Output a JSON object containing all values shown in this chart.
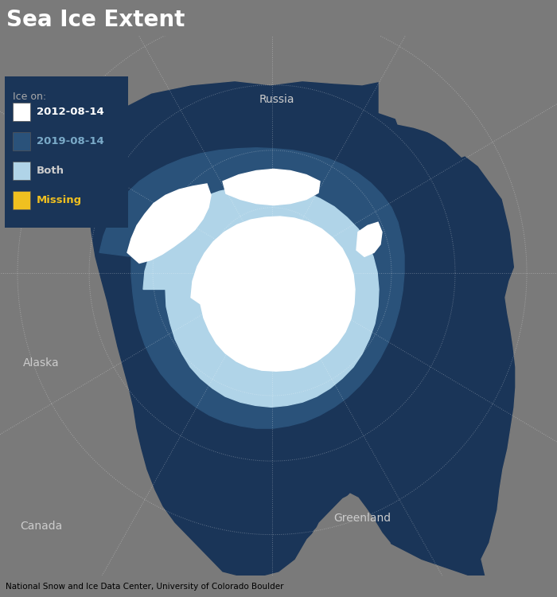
{
  "title": "Sea Ice Extent",
  "title_bg": "#5a5a5a",
  "title_color": "#ffffff",
  "title_fontsize": 20,
  "map_bg": "#7a7a7a",
  "ocean_color": "#1a3558",
  "land_color": "#7a7a7a",
  "ice_2012_color": "#ffffff",
  "ice_2019_color": "#2a527a",
  "ice_both_color": "#b0d4e8",
  "ice_missing_color": "#f0c020",
  "legend_bg": "#1a3558",
  "legend_label_2012": "#ffffff",
  "legend_label_2019": "#7aaac8",
  "legend_label_both": "#cccccc",
  "legend_label_missing": "#f0c020",
  "legend_label_title": "#aaaaaa",
  "legend_ice_2012_label": "2012-08-14",
  "legend_ice_2019_label": "2019-08-14",
  "legend_both_label": "Both",
  "legend_missing_label": "Missing",
  "legend_title": "Ice on:",
  "footer_text": "National Snow and Ice Data Center, University of Colorado Boulder",
  "footer_bg": "#d0d0d0",
  "footer_color": "#000000",
  "label_russia": "Russia",
  "label_alaska": "Alaska",
  "label_greenland": "Greenland",
  "label_canada": "Canada",
  "label_color": "#cccccc",
  "label_fontsize": 10
}
